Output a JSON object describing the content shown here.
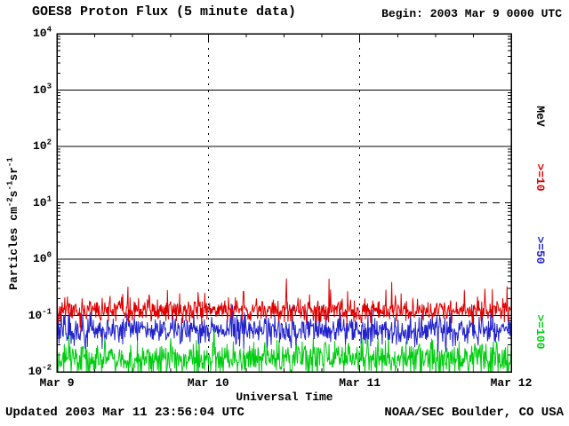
{
  "chart_data": {
    "type": "line",
    "title": "GOES8 Proton Flux (5 minute data)",
    "xlabel": "Universal Time",
    "ylabel": "Particles cm^-2s^-1sr^-1",
    "right_axis_label": "MeV",
    "x_tick_labels": [
      "Mar 9",
      "Mar 10",
      "Mar 11",
      "Mar 12"
    ],
    "y_tick_labels": [
      "10^4",
      "10^3",
      "10^2",
      "10^1",
      "10^0",
      "10^-1",
      "10^-2"
    ],
    "y_log_range": [
      -2,
      4
    ],
    "x_range_days": [
      0,
      3
    ],
    "samples_per_series": 864,
    "grid": {
      "h_solid_exponents": [
        3,
        2,
        0,
        -1
      ],
      "h_dashed_exponents": [
        1
      ],
      "v_dotted_days": [
        1,
        2
      ]
    },
    "annotations": {
      "begin": "Begin: 2003 Mar 9 0000 UTC",
      "updated": "Updated 2003 Mar 11 23:56:04 UTC",
      "source": "NOAA/SEC Boulder, CO USA"
    },
    "series": [
      {
        "name": ">=10",
        "unit": "MeV",
        "color": "#e00000",
        "approx_level": 0.12,
        "mean_log10": -0.92,
        "sd_log10": 0.1,
        "spike_prob": 0.05,
        "spike_amp_log10": 0.45,
        "seed": 11
      },
      {
        "name": ">=50",
        "unit": "MeV",
        "color": "#2222cc",
        "approx_level": 0.055,
        "mean_log10": -1.26,
        "sd_log10": 0.13,
        "spike_prob": 0.03,
        "spike_amp_log10": 0.3,
        "seed": 22
      },
      {
        "name": ">=100",
        "unit": "MeV",
        "color": "#00cc10",
        "approx_level": 0.017,
        "mean_log10": -1.77,
        "sd_log10": 0.16,
        "spike_prob": 0.03,
        "spike_amp_log10": 0.3,
        "seed": 33
      }
    ]
  }
}
